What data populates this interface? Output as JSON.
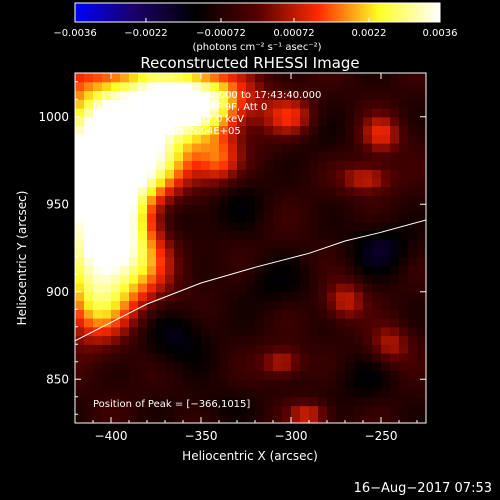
{
  "chart_data": {
    "type": "heatmap",
    "title": "Reconstructed RHESSI Image",
    "xlabel": "Heliocentric X (arcsec)",
    "ylabel": "Heliocentric Y (arcsec)",
    "xlim": [
      -420,
      -225
    ],
    "ylim": [
      825,
      1025
    ],
    "xticks": [
      -400,
      -350,
      -300,
      -250
    ],
    "xtick_labels": [
      "−400",
      "−350",
      "−300",
      "−250"
    ],
    "yticks": [
      850,
      900,
      950,
      1000
    ],
    "ytick_labels": [
      "850",
      "900",
      "950",
      "1000"
    ],
    "colorbar": {
      "min": -0.0036,
      "max": 0.0036,
      "ticks": [
        -0.0036,
        -0.0022,
        -0.00072,
        0.00072,
        0.0022,
        0.0036
      ],
      "tick_labels": [
        "−0.0036",
        "−0.0022",
        "−0.00072",
        "0.00072",
        "0.0022",
        "0.0036"
      ],
      "unit": "(photons cm⁻² s⁻¹ asec⁻²)",
      "colors": [
        "#0000ff",
        "#1a0066",
        "#000000",
        "#550000",
        "#ff2a00",
        "#ffff22",
        "#ffffff"
      ]
    },
    "annotations": {
      "time": "1−Mar−2015 17:33:40.000 to 17:43:40.000",
      "detectors": "Detectors: 3F 5F 6F 7F 8F 9F, Att 0",
      "energy": "Energy Range: 6.0 − 12.0 keV",
      "clean": "Clean     Total counts: 5.04E+05",
      "peak": "Position of Peak = [−366,1015]"
    },
    "peak": {
      "x": -366,
      "y": 1015
    },
    "limb": {
      "x": [
        -420,
        -380,
        -350,
        -320,
        -290,
        -270,
        -250,
        -225
      ],
      "y": [
        872,
        893,
        905,
        914,
        922,
        929,
        934,
        941
      ]
    },
    "features": [
      {
        "x": -385,
        "y": 985,
        "value": 0.0036,
        "sx": 28,
        "sy": 30
      },
      {
        "x": -410,
        "y": 960,
        "value": 0.0033,
        "sx": 20,
        "sy": 35
      },
      {
        "x": -395,
        "y": 920,
        "value": 0.0026,
        "sx": 18,
        "sy": 22
      },
      {
        "x": -355,
        "y": 1010,
        "value": 0.0034,
        "sx": 22,
        "sy": 12
      },
      {
        "x": -410,
        "y": 890,
        "value": 0.0012,
        "sx": 12,
        "sy": 15
      },
      {
        "x": -300,
        "y": 1000,
        "value": 0.0011,
        "sx": 10,
        "sy": 8
      },
      {
        "x": -250,
        "y": 990,
        "value": 0.0012,
        "sx": 8,
        "sy": 8
      },
      {
        "x": -258,
        "y": 965,
        "value": 0.0011,
        "sx": 10,
        "sy": 6
      },
      {
        "x": -340,
        "y": 975,
        "value": 0.0009,
        "sx": 8,
        "sy": 10
      },
      {
        "x": -270,
        "y": 895,
        "value": 0.001,
        "sx": 8,
        "sy": 8
      },
      {
        "x": -305,
        "y": 860,
        "value": 0.001,
        "sx": 8,
        "sy": 6
      },
      {
        "x": -245,
        "y": 870,
        "value": 0.0008,
        "sx": 8,
        "sy": 8
      },
      {
        "x": -290,
        "y": 830,
        "value": 0.0011,
        "sx": 8,
        "sy": 5
      },
      {
        "x": -365,
        "y": 945,
        "value": -0.0024,
        "sx": 16,
        "sy": 14
      },
      {
        "x": -330,
        "y": 955,
        "value": -0.0014,
        "sx": 12,
        "sy": 12
      },
      {
        "x": -310,
        "y": 905,
        "value": -0.0012,
        "sx": 14,
        "sy": 10
      },
      {
        "x": -365,
        "y": 875,
        "value": -0.0016,
        "sx": 14,
        "sy": 12
      },
      {
        "x": -250,
        "y": 925,
        "value": -0.0017,
        "sx": 12,
        "sy": 10
      },
      {
        "x": -260,
        "y": 850,
        "value": -0.0012,
        "sx": 12,
        "sy": 10
      },
      {
        "x": -340,
        "y": 835,
        "value": -0.001,
        "sx": 14,
        "sy": 8
      },
      {
        "x": -285,
        "y": 990,
        "value": -0.001,
        "sx": 12,
        "sy": 10
      }
    ]
  },
  "footer": {
    "date": "16−Aug−2017 07:53"
  }
}
